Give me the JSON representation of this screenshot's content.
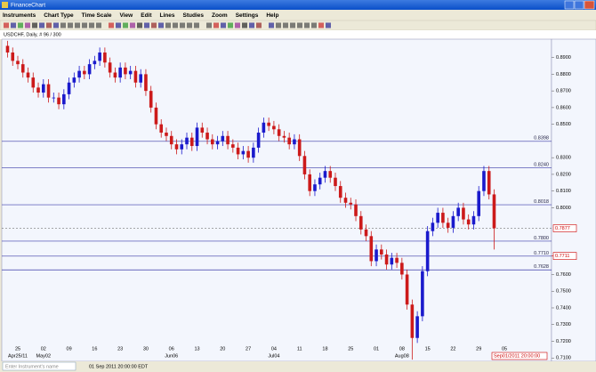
{
  "window": {
    "title": "FinanceChart"
  },
  "menu": [
    "Instruments",
    "Chart Type",
    "Time Scale",
    "View",
    "Edit",
    "Lines",
    "Studies",
    "Zoom",
    "Settings",
    "Help"
  ],
  "status": {
    "instrument_placeholder": "Enter Instrument's name",
    "datetime": "01 Sep 2011 20:00:00 EDT"
  },
  "chart_data": {
    "type": "candlestick",
    "title": "USDCHF, Daily, # 96 / 300",
    "up_color": "#1a1acc",
    "down_color": "#cc1a1a",
    "line_color": "#3a3aa8",
    "ylim": [
      0.708,
      0.901
    ],
    "yticks": [
      {
        "value": 0.89,
        "label": "0.8900"
      },
      {
        "value": 0.88,
        "label": "0.8800"
      },
      {
        "value": 0.87,
        "label": "0.8700"
      },
      {
        "value": 0.86,
        "label": "0.8600"
      },
      {
        "value": 0.85,
        "label": "0.8500"
      },
      {
        "value": 0.83,
        "label": "0.8300"
      },
      {
        "value": 0.82,
        "label": "0.8200"
      },
      {
        "value": 0.81,
        "label": "0.8100"
      },
      {
        "value": 0.8,
        "label": "0.8000"
      },
      {
        "value": 0.76,
        "label": "0.7600"
      },
      {
        "value": 0.75,
        "label": "0.7500"
      },
      {
        "value": 0.74,
        "label": "0.7400"
      },
      {
        "value": 0.73,
        "label": "0.7300"
      },
      {
        "value": 0.72,
        "label": "0.7200"
      },
      {
        "value": 0.71,
        "label": "0.7100"
      }
    ],
    "levels": [
      {
        "value": 0.8398,
        "label": "0.8398"
      },
      {
        "value": 0.824,
        "label": "0.8240"
      },
      {
        "value": 0.8018,
        "label": "0.8018"
      },
      {
        "value": 0.78,
        "label": "0.7800"
      },
      {
        "value": 0.771,
        "label": "0.7710"
      },
      {
        "value": 0.7628,
        "label": "0.7628"
      }
    ],
    "axis_markers": [
      {
        "value": 0.7877,
        "label": "0.7877"
      },
      {
        "value": 0.7711,
        "label": "0.7711"
      }
    ],
    "cursor_date": "Sep01/2011 20:00:00",
    "xticks": [
      "25",
      "02",
      "09",
      "16",
      "23",
      "30",
      "06",
      "13",
      "20",
      "27",
      "04",
      "11",
      "18",
      "25",
      "01",
      "08",
      "15",
      "22",
      "29",
      "05"
    ],
    "xtick_months": [
      "Apr25/11",
      "May02",
      null,
      null,
      null,
      null,
      "Jun06",
      null,
      null,
      null,
      "Jul04",
      null,
      null,
      null,
      null,
      "Aug08",
      null,
      null,
      null,
      "Sep05"
    ],
    "candles": [
      [
        0.897,
        0.9,
        0.89,
        0.893
      ],
      [
        0.893,
        0.896,
        0.885,
        0.888
      ],
      [
        0.888,
        0.891,
        0.883,
        0.886
      ],
      [
        0.886,
        0.889,
        0.878,
        0.881
      ],
      [
        0.881,
        0.884,
        0.875,
        0.878
      ],
      [
        0.878,
        0.881,
        0.869,
        0.872
      ],
      [
        0.872,
        0.875,
        0.866,
        0.869
      ],
      [
        0.869,
        0.877,
        0.866,
        0.874
      ],
      [
        0.874,
        0.877,
        0.863,
        0.866
      ],
      [
        0.866,
        0.869,
        0.863,
        0.866
      ],
      [
        0.866,
        0.869,
        0.859,
        0.862
      ],
      [
        0.862,
        0.871,
        0.859,
        0.868
      ],
      [
        0.868,
        0.878,
        0.865,
        0.875
      ],
      [
        0.875,
        0.881,
        0.872,
        0.878
      ],
      [
        0.878,
        0.885,
        0.875,
        0.882
      ],
      [
        0.882,
        0.885,
        0.877,
        0.88
      ],
      [
        0.88,
        0.889,
        0.877,
        0.886
      ],
      [
        0.886,
        0.891,
        0.883,
        0.888
      ],
      [
        0.888,
        0.896,
        0.885,
        0.893
      ],
      [
        0.893,
        0.896,
        0.884,
        0.887
      ],
      [
        0.887,
        0.89,
        0.878,
        0.881
      ],
      [
        0.881,
        0.884,
        0.875,
        0.878
      ],
      [
        0.878,
        0.887,
        0.875,
        0.884
      ],
      [
        0.884,
        0.887,
        0.877,
        0.88
      ],
      [
        0.88,
        0.885,
        0.877,
        0.882
      ],
      [
        0.882,
        0.885,
        0.872,
        0.875
      ],
      [
        0.875,
        0.883,
        0.872,
        0.88
      ],
      [
        0.88,
        0.883,
        0.867,
        0.87
      ],
      [
        0.87,
        0.873,
        0.857,
        0.86
      ],
      [
        0.86,
        0.863,
        0.847,
        0.85
      ],
      [
        0.85,
        0.853,
        0.842,
        0.845
      ],
      [
        0.845,
        0.848,
        0.84,
        0.843
      ],
      [
        0.843,
        0.846,
        0.835,
        0.838
      ],
      [
        0.838,
        0.841,
        0.832,
        0.835
      ],
      [
        0.835,
        0.841,
        0.832,
        0.838
      ],
      [
        0.838,
        0.845,
        0.835,
        0.842
      ],
      [
        0.842,
        0.845,
        0.834,
        0.837
      ],
      [
        0.837,
        0.851,
        0.834,
        0.848
      ],
      [
        0.848,
        0.851,
        0.842,
        0.845
      ],
      [
        0.845,
        0.848,
        0.838,
        0.841
      ],
      [
        0.841,
        0.844,
        0.835,
        0.838
      ],
      [
        0.838,
        0.843,
        0.835,
        0.84
      ],
      [
        0.84,
        0.846,
        0.837,
        0.843
      ],
      [
        0.843,
        0.846,
        0.835,
        0.838
      ],
      [
        0.838,
        0.841,
        0.833,
        0.836
      ],
      [
        0.836,
        0.839,
        0.829,
        0.832
      ],
      [
        0.832,
        0.837,
        0.829,
        0.834
      ],
      [
        0.834,
        0.837,
        0.827,
        0.83
      ],
      [
        0.83,
        0.839,
        0.827,
        0.836
      ],
      [
        0.836,
        0.848,
        0.833,
        0.845
      ],
      [
        0.845,
        0.854,
        0.842,
        0.851
      ],
      [
        0.851,
        0.854,
        0.846,
        0.849
      ],
      [
        0.849,
        0.852,
        0.844,
        0.847
      ],
      [
        0.847,
        0.85,
        0.84,
        0.843
      ],
      [
        0.843,
        0.846,
        0.839,
        0.842
      ],
      [
        0.842,
        0.845,
        0.835,
        0.838
      ],
      [
        0.838,
        0.844,
        0.835,
        0.841
      ],
      [
        0.841,
        0.844,
        0.828,
        0.831
      ],
      [
        0.831,
        0.834,
        0.817,
        0.82
      ],
      [
        0.82,
        0.823,
        0.807,
        0.81
      ],
      [
        0.81,
        0.817,
        0.807,
        0.814
      ],
      [
        0.814,
        0.821,
        0.811,
        0.818
      ],
      [
        0.818,
        0.825,
        0.815,
        0.822
      ],
      [
        0.822,
        0.825,
        0.815,
        0.818
      ],
      [
        0.818,
        0.821,
        0.81,
        0.813
      ],
      [
        0.813,
        0.816,
        0.803,
        0.806
      ],
      [
        0.806,
        0.809,
        0.8,
        0.803
      ],
      [
        0.803,
        0.806,
        0.799,
        0.802
      ],
      [
        0.802,
        0.805,
        0.792,
        0.795
      ],
      [
        0.795,
        0.798,
        0.784,
        0.787
      ],
      [
        0.787,
        0.79,
        0.78,
        0.783
      ],
      [
        0.783,
        0.786,
        0.765,
        0.768
      ],
      [
        0.768,
        0.778,
        0.765,
        0.775
      ],
      [
        0.775,
        0.778,
        0.769,
        0.772
      ],
      [
        0.772,
        0.775,
        0.763,
        0.766
      ],
      [
        0.766,
        0.773,
        0.763,
        0.77
      ],
      [
        0.77,
        0.773,
        0.764,
        0.767
      ],
      [
        0.767,
        0.77,
        0.757,
        0.76
      ],
      [
        0.76,
        0.763,
        0.739,
        0.742
      ],
      [
        0.742,
        0.745,
        0.709,
        0.722
      ],
      [
        0.722,
        0.738,
        0.719,
        0.735
      ],
      [
        0.735,
        0.765,
        0.732,
        0.762
      ],
      [
        0.762,
        0.789,
        0.759,
        0.786
      ],
      [
        0.786,
        0.794,
        0.783,
        0.791
      ],
      [
        0.791,
        0.8,
        0.788,
        0.797
      ],
      [
        0.797,
        0.8,
        0.788,
        0.791
      ],
      [
        0.791,
        0.794,
        0.785,
        0.788
      ],
      [
        0.788,
        0.798,
        0.785,
        0.795
      ],
      [
        0.795,
        0.803,
        0.792,
        0.8
      ],
      [
        0.8,
        0.803,
        0.79,
        0.793
      ],
      [
        0.793,
        0.796,
        0.787,
        0.79
      ],
      [
        0.79,
        0.798,
        0.787,
        0.795
      ],
      [
        0.795,
        0.813,
        0.792,
        0.81
      ],
      [
        0.81,
        0.825,
        0.807,
        0.822
      ],
      [
        0.822,
        0.825,
        0.805,
        0.808
      ],
      [
        0.808,
        0.811,
        0.775,
        0.7877
      ]
    ]
  }
}
